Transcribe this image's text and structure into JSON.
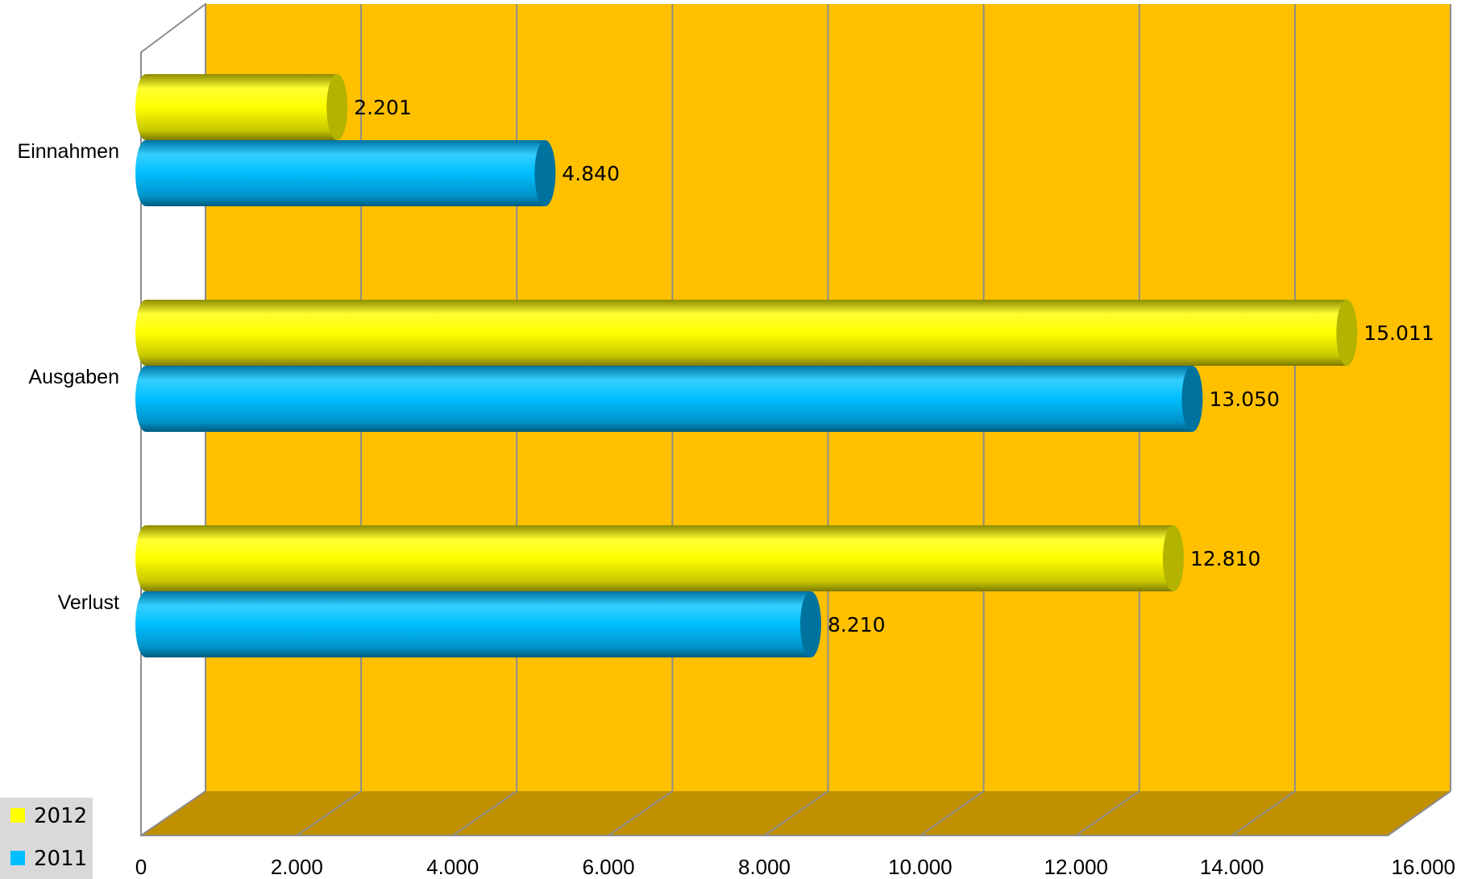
{
  "chart_data": {
    "type": "bar",
    "orientation": "horizontal",
    "three_d": true,
    "categories": [
      "Einnahmen",
      "Ausgaben",
      "Verlust"
    ],
    "series": [
      {
        "name": "2012",
        "values": [
          2201,
          15011,
          12810
        ],
        "labels": [
          "2.201",
          "15.011",
          "12.810"
        ],
        "color": "#FFFF00"
      },
      {
        "name": "2011",
        "values": [
          4840,
          13050,
          8210
        ],
        "labels": [
          "4.840",
          "13.050",
          "8.210"
        ],
        "color": "#00BFFF"
      }
    ],
    "xlim": [
      0,
      16000
    ],
    "xticks": [
      {
        "value": 0,
        "label": "0"
      },
      {
        "value": 2000,
        "label": "2.000"
      },
      {
        "value": 4000,
        "label": "4.000"
      },
      {
        "value": 6000,
        "label": "6.000"
      },
      {
        "value": 8000,
        "label": "8.000"
      },
      {
        "value": 10000,
        "label": "10.000"
      },
      {
        "value": 12000,
        "label": "12.000"
      },
      {
        "value": 14000,
        "label": "14.000"
      },
      {
        "value": 16000,
        "label": "16.000"
      }
    ],
    "grid": true,
    "legend_position": "bottom-left",
    "colors": {
      "back_wall": "#FFC000",
      "floor": "#C09000",
      "gridline": "#8C8C8C"
    }
  }
}
